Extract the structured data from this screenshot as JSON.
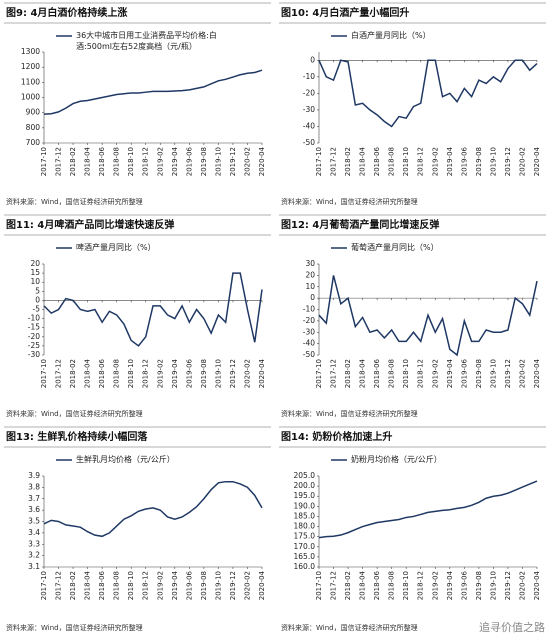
{
  "chart_data": [
    {
      "type": "line",
      "title": "图9: 4月白酒价格持续上涨",
      "source": "资料来源：Wind，国信证券经济研究所整理",
      "categories": [
        "2017-10",
        null,
        "2017-12",
        null,
        "2018-02",
        null,
        "2018-04",
        null,
        "2018-06",
        null,
        "2018-08",
        null,
        "2018-10",
        null,
        "2018-12",
        null,
        "2019-02",
        null,
        "2019-04",
        null,
        "2019-06",
        null,
        "2019-08",
        null,
        "2019-10",
        null,
        "2019-12",
        null,
        "2020-02",
        null,
        "2020-04"
      ],
      "series": [
        {
          "name": "36大中城市日用工业消费品平均价格:白酒:500ml左右52度高档（元/瓶）",
          "color": "#1f3864",
          "values": [
            890,
            893,
            905,
            930,
            960,
            975,
            980,
            990,
            1000,
            1010,
            1020,
            1025,
            1030,
            1030,
            1035,
            1040,
            1040,
            1040,
            1043,
            1045,
            1050,
            1060,
            1070,
            1090,
            1110,
            1120,
            1135,
            1150,
            1160,
            1165,
            1180
          ]
        }
      ],
      "ylim": [
        700,
        1300
      ],
      "yticks": [
        700,
        800,
        900,
        1000,
        1100,
        1200,
        1300
      ]
    },
    {
      "type": "line",
      "title": "图10: 4月白酒产量小幅回升",
      "source": "资料来源：Wind，国信证券经济研究所整理",
      "categories": [
        "2017-10",
        null,
        "2017-12",
        null,
        "2018-02",
        null,
        "2018-04",
        null,
        "2018-06",
        null,
        "2018-08",
        null,
        "2018-10",
        null,
        "2018-12",
        null,
        "2019-02",
        null,
        "2019-04",
        null,
        "2019-06",
        null,
        "2019-08",
        null,
        "2019-10",
        null,
        "2019-12",
        null,
        "2020-02",
        null,
        "2020-04"
      ],
      "series": [
        {
          "name": "白酒产量月同比（%）",
          "color": "#1f3864",
          "values": [
            0,
            -10,
            -12,
            0,
            -1,
            -27,
            -26,
            -30,
            -33,
            -37,
            -40,
            -34,
            -35,
            -28,
            -26,
            0,
            0,
            -22,
            -20,
            -25,
            -17,
            -22,
            -12,
            -14,
            -10,
            -13,
            -5,
            0,
            0,
            -6,
            -2
          ]
        }
      ],
      "ylim": [
        -50,
        5
      ],
      "yticks": [
        -50,
        -40,
        -30,
        -20,
        -10,
        0
      ]
    },
    {
      "type": "line",
      "title": "图11: 4月啤酒产品同比增速快速反弹",
      "source": "资料来源：Wind，国信证券经济研究所整理",
      "categories": [
        "2017-10",
        null,
        "2017-12",
        null,
        "2018-02",
        null,
        "2018-04",
        null,
        "2018-06",
        null,
        "2018-08",
        null,
        "2018-10",
        null,
        "2018-12",
        null,
        "2019-02",
        null,
        "2019-04",
        null,
        "2019-06",
        null,
        "2019-08",
        null,
        "2019-10",
        null,
        "2019-12",
        null,
        "2020-02",
        null,
        "2020-04"
      ],
      "series": [
        {
          "name": "啤酒产量月同比（%）",
          "color": "#1f3864",
          "values": [
            -3,
            -7,
            -5,
            1,
            0,
            -5,
            -6,
            -5,
            -12,
            -6,
            -8,
            -13,
            -22,
            -25,
            -20,
            -3,
            -3,
            -8,
            -10,
            -3,
            -12,
            -5,
            -10,
            -18,
            -8,
            -12,
            15,
            15,
            -5,
            -23,
            6
          ]
        }
      ],
      "ylim": [
        -30,
        20
      ],
      "yticks": [
        -30,
        -25,
        -20,
        -15,
        -10,
        -5,
        0,
        5,
        10,
        15,
        20
      ]
    },
    {
      "type": "line",
      "title": "图12: 4月葡萄酒产量同比增速反弹",
      "source": "资料来源：Wind，国信证券经济研究所整理",
      "categories": [
        "2017-10",
        null,
        "2017-12",
        null,
        "2018-02",
        null,
        "2018-04",
        null,
        "2018-06",
        null,
        "2018-08",
        null,
        "2018-10",
        null,
        "2018-12",
        null,
        "2019-02",
        null,
        "2019-04",
        null,
        "2019-06",
        null,
        "2019-08",
        null,
        "2019-10",
        null,
        "2019-12",
        null,
        "2020-02",
        null,
        "2020-04"
      ],
      "series": [
        {
          "name": "葡萄酒产量月同比（%）",
          "color": "#1f3864",
          "values": [
            -15,
            -22,
            20,
            -5,
            0,
            -25,
            -17,
            -30,
            -28,
            -35,
            -28,
            -38,
            -38,
            -30,
            -38,
            -15,
            -30,
            -18,
            -45,
            -50,
            -20,
            -38,
            -38,
            -28,
            -30,
            -30,
            -28,
            0,
            -5,
            -15,
            15
          ]
        }
      ],
      "ylim": [
        -50,
        30
      ],
      "yticks": [
        -50,
        -40,
        -30,
        -20,
        -10,
        0,
        10,
        20,
        30
      ]
    },
    {
      "type": "line",
      "title": "图13: 生鲜乳价格持续小幅回落",
      "source": "资料来源：Wind，国信证券经济研究所整理",
      "categories": [
        "2017-10",
        null,
        "2017-12",
        null,
        "2018-02",
        null,
        "2018-04",
        null,
        "2018-06",
        null,
        "2018-08",
        null,
        "2018-10",
        null,
        "2018-12",
        null,
        "2019-02",
        null,
        "2019-04",
        null,
        "2019-06",
        null,
        "2019-08",
        null,
        "2019-10",
        null,
        "2019-12",
        null,
        "2020-02",
        null,
        "2020-04"
      ],
      "series": [
        {
          "name": "生鲜乳月均价格（元/公斤）",
          "color": "#1f3864",
          "values": [
            3.48,
            3.51,
            3.5,
            3.47,
            3.46,
            3.45,
            3.41,
            3.38,
            3.37,
            3.4,
            3.46,
            3.52,
            3.55,
            3.59,
            3.61,
            3.62,
            3.6,
            3.54,
            3.52,
            3.54,
            3.58,
            3.63,
            3.7,
            3.78,
            3.84,
            3.85,
            3.85,
            3.83,
            3.8,
            3.73,
            3.62
          ]
        }
      ],
      "ylim": [
        3.1,
        3.9
      ],
      "yticks": [
        3.1,
        3.2,
        3.3,
        3.4,
        3.5,
        3.6,
        3.7,
        3.8,
        3.9
      ]
    },
    {
      "type": "line",
      "title": "图14: 奶粉价格加速上升",
      "source": "资料来源：Wind，国信证券经济研究所整理",
      "categories": [
        "2017-10",
        null,
        "2017-12",
        null,
        "2018-02",
        null,
        "2018-04",
        null,
        "2018-06",
        null,
        "2018-08",
        null,
        "2018-10",
        null,
        "2018-12",
        null,
        "2019-02",
        null,
        "2019-04",
        null,
        "2019-06",
        null,
        "2019-08",
        null,
        "2019-10",
        null,
        "2019-12",
        null,
        "2020-02",
        null,
        "2020-04"
      ],
      "series": [
        {
          "name": "奶粉月均价格（元/公斤）",
          "color": "#1f3864",
          "values": [
            174.5,
            175,
            175.2,
            175.8,
            177,
            178.5,
            180,
            181,
            182,
            182.5,
            183,
            183.5,
            184.5,
            185,
            186,
            187,
            187.5,
            188,
            188.3,
            189,
            189.5,
            190.5,
            192,
            194,
            195,
            195.5,
            196.5,
            198,
            199.5,
            201,
            202.5
          ]
        }
      ],
      "ylim": [
        160,
        205
      ],
      "yticks": [
        {
          "value": 160,
          "label": "160.0"
        },
        {
          "value": 165,
          "label": "165.0"
        },
        {
          "value": 170,
          "label": "170.0"
        },
        {
          "value": 175,
          "label": "175.0"
        },
        {
          "value": 180,
          "label": "180.0"
        },
        {
          "value": 185,
          "label": "185.0"
        },
        {
          "value": 190,
          "label": "190.0"
        },
        {
          "value": 195,
          "label": "195.0"
        },
        {
          "value": 200,
          "label": "200.0"
        },
        {
          "value": 205,
          "label": "205.0"
        }
      ]
    }
  ],
  "watermark": "追寻价值之路"
}
